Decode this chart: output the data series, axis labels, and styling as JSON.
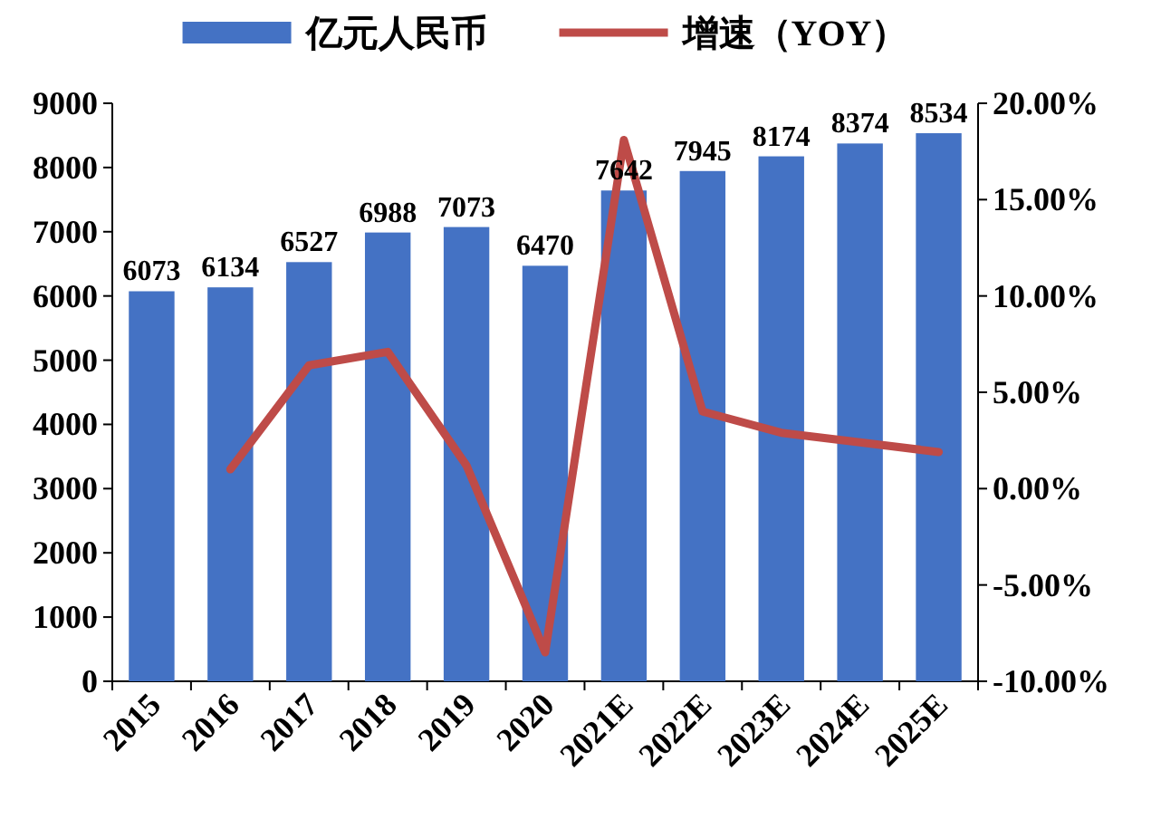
{
  "chart_data": {
    "type": "bar",
    "categories": [
      "2015",
      "2016",
      "2017",
      "2018",
      "2019",
      "2020",
      "2021E",
      "2022E",
      "2023E",
      "2024E",
      "2025E"
    ],
    "series": [
      {
        "name": "亿元人民币",
        "color": "#4472c4",
        "values": [
          6073,
          6134,
          6527,
          6988,
          7073,
          6470,
          7642,
          7945,
          8174,
          8374,
          8534
        ],
        "value_labels": [
          "6073",
          "6134",
          "6527",
          "6988",
          "7073",
          "6470",
          "7642",
          "7945",
          "8174",
          "8374",
          "8534"
        ]
      },
      {
        "name": "增速（YOY）",
        "type": "line",
        "axis": "y2",
        "color": "#be4b48",
        "values": [
          null,
          1.0,
          6.4,
          7.1,
          1.2,
          -8.5,
          18.1,
          4.0,
          2.9,
          2.4,
          1.9
        ]
      }
    ],
    "ylim": [
      0,
      9000
    ],
    "yticks": [
      0,
      1000,
      2000,
      3000,
      4000,
      5000,
      6000,
      7000,
      8000,
      9000
    ],
    "y2lim": [
      -10,
      20
    ],
    "y2ticks": [
      {
        "value": -10,
        "label": "-10.00%"
      },
      {
        "value": -5,
        "label": "-5.00%"
      },
      {
        "value": 0,
        "label": "0.00%"
      },
      {
        "value": 5,
        "label": "5.00%"
      },
      {
        "value": 10,
        "label": "10.00%"
      },
      {
        "value": 15,
        "label": "15.00%"
      },
      {
        "value": 20,
        "label": "20.00%"
      }
    ],
    "legend": "top"
  }
}
